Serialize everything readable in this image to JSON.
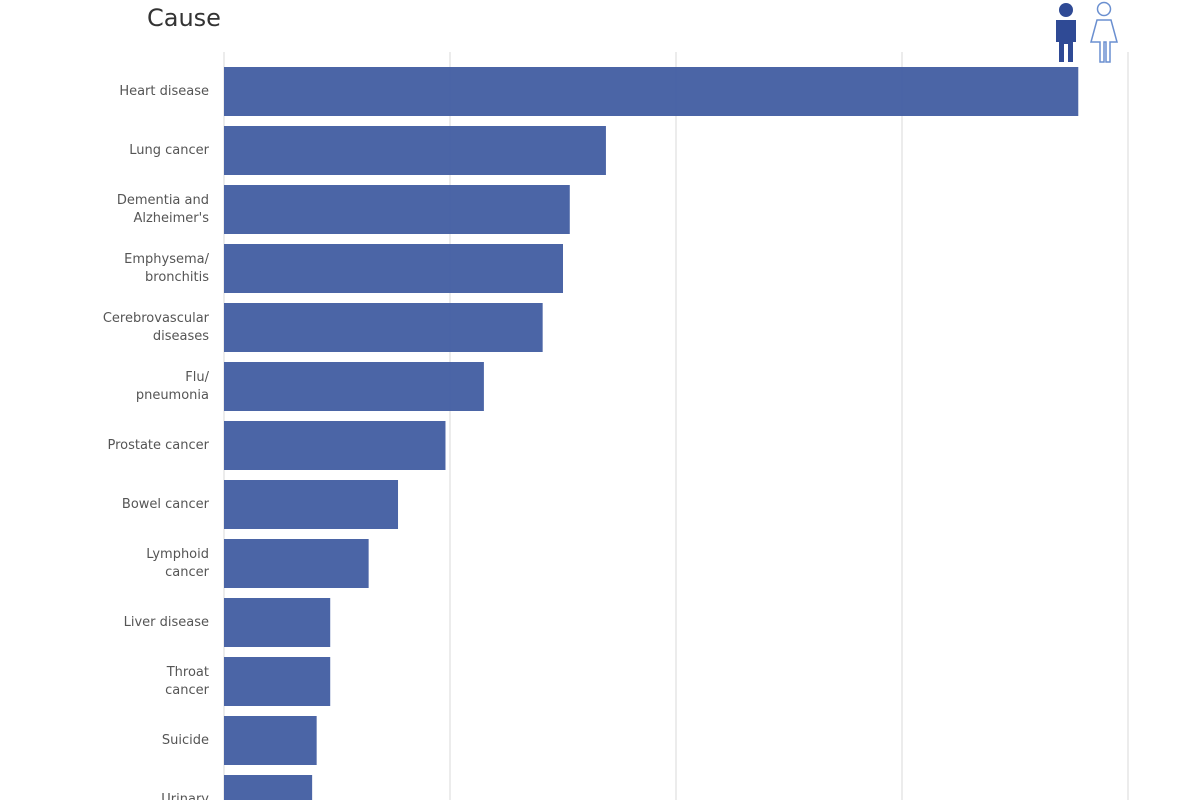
{
  "chart_data": {
    "type": "barh",
    "title": "Cause",
    "categories": [
      "Heart disease",
      "Lung cancer",
      "Dementia and\nAlzheimer's",
      "Emphysema/\nbronchitis",
      "Cerebrovascular\ndiseases",
      "Flu/\npneumonia",
      "Prostate cancer",
      "Bowel cancer",
      "Lymphoid\ncancer",
      "Liver disease",
      "Throat\ncancer",
      "Suicide",
      "Urinary"
    ],
    "values": [
      3.78,
      1.69,
      1.53,
      1.5,
      1.41,
      1.15,
      0.98,
      0.77,
      0.64,
      0.47,
      0.47,
      0.41,
      0.39
    ],
    "color": "#4560a3",
    "xlim": [
      0,
      4
    ],
    "xticks": [
      0,
      1,
      2,
      3,
      4
    ],
    "grid": true
  }
}
